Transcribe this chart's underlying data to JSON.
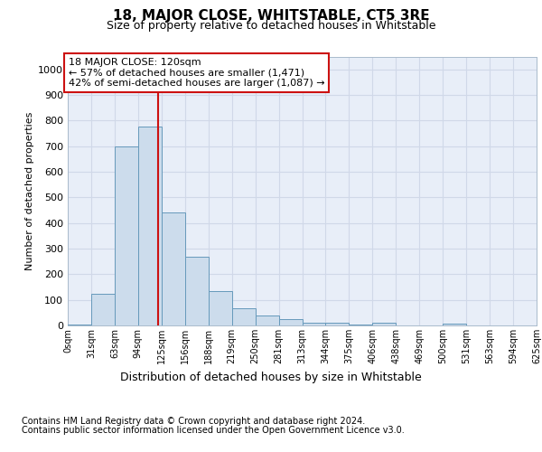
{
  "title": "18, MAJOR CLOSE, WHITSTABLE, CT5 3RE",
  "subtitle": "Size of property relative to detached houses in Whitstable",
  "xlabel": "Distribution of detached houses by size in Whitstable",
  "ylabel": "Number of detached properties",
  "footer_line1": "Contains HM Land Registry data © Crown copyright and database right 2024.",
  "footer_line2": "Contains public sector information licensed under the Open Government Licence v3.0.",
  "bin_labels": [
    "0sqm",
    "31sqm",
    "63sqm",
    "94sqm",
    "125sqm",
    "156sqm",
    "188sqm",
    "219sqm",
    "250sqm",
    "281sqm",
    "313sqm",
    "344sqm",
    "375sqm",
    "406sqm",
    "438sqm",
    "469sqm",
    "500sqm",
    "531sqm",
    "563sqm",
    "594sqm",
    "625sqm"
  ],
  "bar_values": [
    5,
    125,
    700,
    775,
    440,
    270,
    135,
    68,
    40,
    25,
    12,
    10,
    5,
    10,
    0,
    0,
    8,
    0,
    0,
    0
  ],
  "bar_color": "#ccdcec",
  "bar_edge_color": "#6699bb",
  "vline_x": 120,
  "vline_color": "#cc1111",
  "ann_title": "18 MAJOR CLOSE: 120sqm",
  "ann_line1": "← 57% of detached houses are smaller (1,471)",
  "ann_line2": "42% of semi-detached houses are larger (1,087) →",
  "ann_box_facecolor": "#ffffff",
  "ann_box_edge": "#cc1111",
  "ylim": [
    0,
    1050
  ],
  "yticks": [
    0,
    100,
    200,
    300,
    400,
    500,
    600,
    700,
    800,
    900,
    1000
  ],
  "bin_width": 31.25,
  "plot_bg": "#e8eef8",
  "grid_color": "#d0d8e8",
  "title_fontsize": 11,
  "subtitle_fontsize": 9,
  "ylabel_fontsize": 8,
  "xlabel_fontsize": 9,
  "tick_fontsize": 8,
  "xtick_fontsize": 7,
  "footer_fontsize": 7,
  "ann_fontsize": 8
}
